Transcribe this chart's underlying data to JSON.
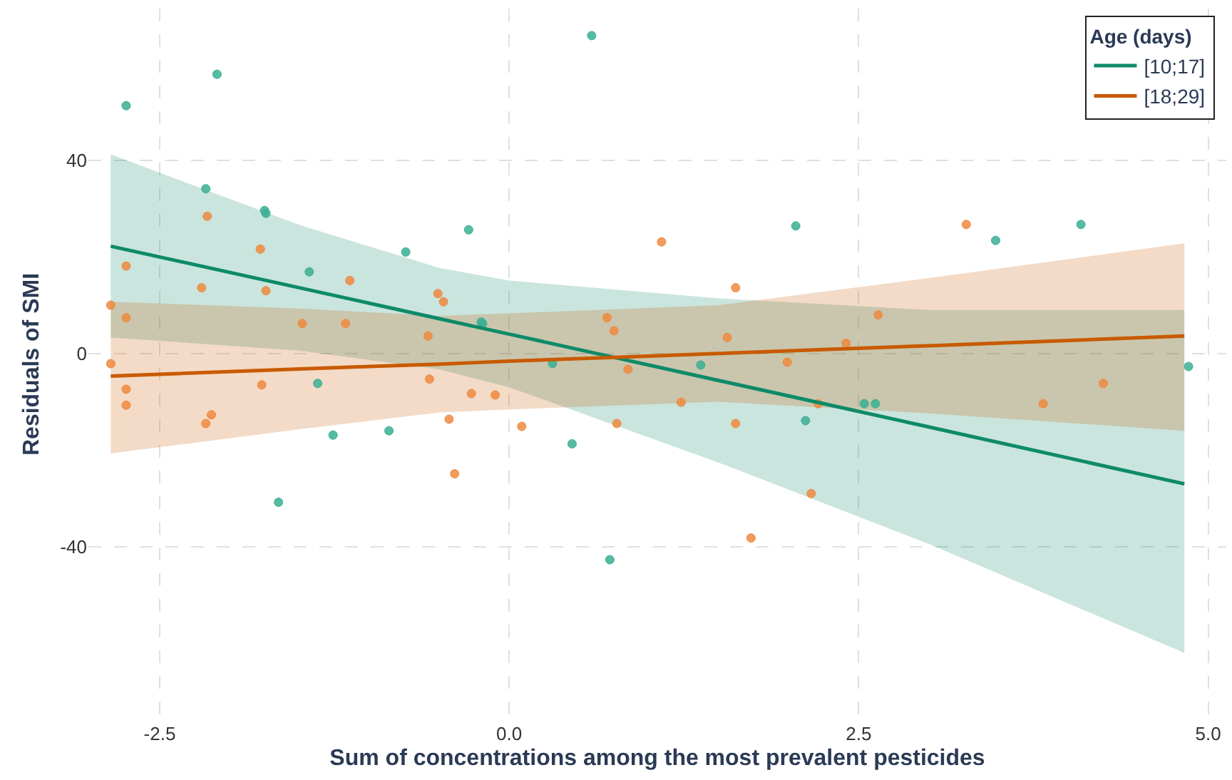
{
  "chart_data": {
    "type": "scatter",
    "xlabel": "Sum of concentrations among the most prevalent pesticides",
    "ylabel": "Residuals of SMI",
    "legend_title": "Age (days)",
    "xlim": [
      -3.01,
      5.13
    ],
    "ylim": [
      -75.9,
      71.4
    ],
    "xticks": [
      {
        "value": -2.5,
        "label": "-2.5"
      },
      {
        "value": 0,
        "label": "0.0"
      },
      {
        "value": 2.5,
        "label": "2.5"
      },
      {
        "value": 5,
        "label": "5.0"
      }
    ],
    "yticks": [
      -40,
      0,
      40
    ],
    "grid": "dashed",
    "legend": "top right",
    "series": [
      {
        "marker": "circle",
        "color": "#3aaf93",
        "x": [
          -2.74,
          -2.09,
          -2.17,
          -1.75,
          -1.74,
          -1.43,
          -0.74,
          -0.29,
          -0.2,
          -0.19,
          0.59,
          2.05,
          3.48,
          4.09,
          4.86,
          -1.37,
          -1.26,
          -0.86,
          -1.65,
          0.31,
          1.37,
          0.45,
          0.72,
          2.12,
          2.54,
          2.62
        ],
        "values": [
          51.3,
          57.8,
          34.1,
          29.6,
          29,
          16.9,
          21,
          25.6,
          6.5,
          6.2,
          65.8,
          26.4,
          23.4,
          26.7,
          -2.7,
          -6.2,
          -16.9,
          -16,
          -30.8,
          -2.1,
          -2.4,
          -18.7,
          -42.7,
          -13.9,
          -10.4,
          -10.4
        ]
      },
      {
        "marker": "circle",
        "color": "#ee8a3f",
        "x": [
          -2.16,
          -2.74,
          -1.78,
          -2.2,
          -1.74,
          -1.14,
          -0.51,
          -0.47,
          -2.85,
          -2.74,
          -1.48,
          -1.17,
          -0.58,
          -2.85,
          -2.74,
          -2.74,
          -2.17,
          -2.13,
          -1.77,
          -0.57,
          -0.27,
          -0.1,
          -0.43,
          -0.39,
          0.09,
          1.09,
          1.62,
          0.7,
          0.75,
          1.56,
          2.41,
          2.64,
          1.99,
          0.85,
          1.23,
          2.21,
          0.77,
          1.62,
          2.16,
          1.73,
          3.27,
          3.82,
          4.25
        ],
        "values": [
          28.4,
          18.1,
          21.6,
          13.6,
          13,
          15.1,
          12.4,
          10.7,
          10,
          7.4,
          6.2,
          6.2,
          3.6,
          -2.1,
          -7.4,
          -10.7,
          -14.5,
          -12.7,
          -6.5,
          -5.3,
          -8.3,
          -8.6,
          -13.6,
          -24.9,
          -15.1,
          23.1,
          13.6,
          7.4,
          4.7,
          3.3,
          2.1,
          8,
          -1.8,
          -3.3,
          -10.1,
          -10.4,
          -14.5,
          -14.5,
          -29,
          -38.2,
          26.7,
          -10.4,
          -6.2
        ]
      },
      {
        "type": "line",
        "name": "[10;17]",
        "marker": "none",
        "line_style": "solid",
        "color": "#0e8a68",
        "x": [
          -2.85,
          -1.5,
          -0.5,
          0,
          1.5,
          3,
          4.83
        ],
        "values": [
          22.2,
          13.6,
          7.2,
          4.0,
          -5.6,
          -15.2,
          -27.0
        ],
        "lower": [
          3.3,
          0.6,
          -3.3,
          -7,
          -22.6,
          -39.4,
          -62
        ],
        "upper": [
          41.2,
          26.6,
          17.7,
          15.1,
          11.4,
          9,
          9
        ]
      },
      {
        "type": "line",
        "name": "[18;29]",
        "marker": "none",
        "line_style": "solid",
        "color": "#c85a00",
        "x": [
          -2.85,
          -1.5,
          -0.5,
          0,
          1.5,
          3,
          4.83
        ],
        "values": [
          -4.7,
          -3.2,
          -2.2,
          -1.6,
          0.0,
          1.6,
          3.6
        ],
        "lower": [
          -20.7,
          -15.7,
          -12.2,
          -11.6,
          -10,
          -12.4,
          -16
        ],
        "upper": [
          10.7,
          9.3,
          7.8,
          8.3,
          10,
          15.6,
          22.8
        ]
      }
    ]
  }
}
